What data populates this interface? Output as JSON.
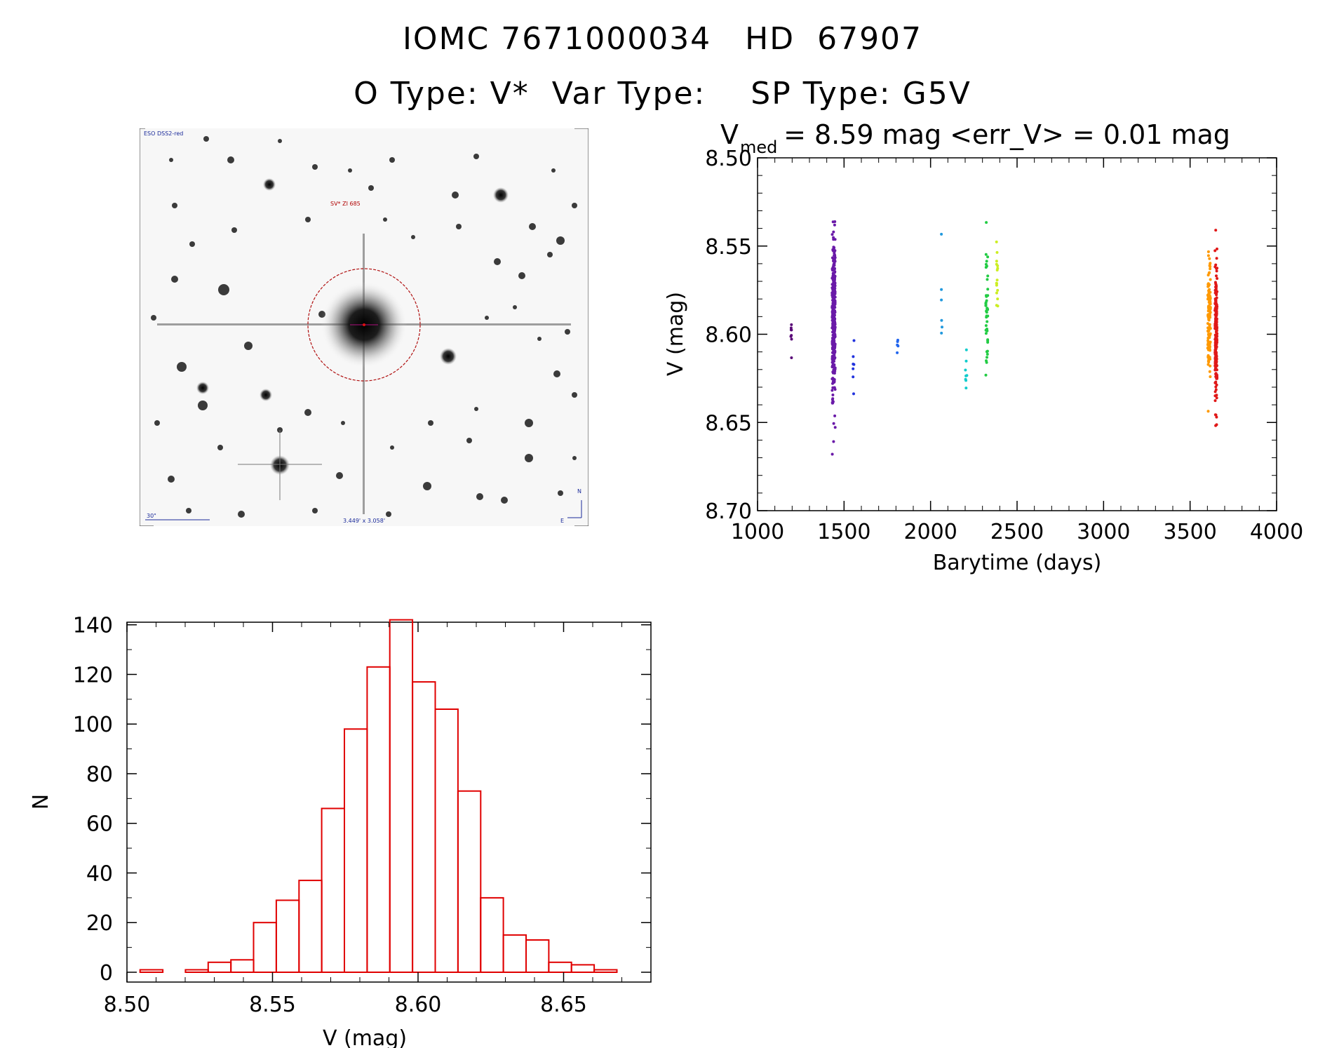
{
  "header": {
    "line1": "IOMC 7671000034   HD  67907",
    "line2": "O Type: V*  Var Type:    SP Type: G5V"
  },
  "finder": {
    "survey_label": "ESO DSS2-red",
    "object_label": "SV* ZI 685",
    "scale_label": "30\"",
    "fov_label": "3.449' x 3.058'",
    "north_label": "N",
    "east_label": "E"
  },
  "chart_data": [
    {
      "type": "scatter",
      "id": "light-curve",
      "title_main": "V",
      "title_sub": "med",
      "title_rest": " = 8.59 mag <err_V> = 0.01 mag",
      "xlabel": "Barytime (days)",
      "ylabel": "V (mag)",
      "xlim": [
        1000,
        4000
      ],
      "ylim": [
        8.7,
        8.5
      ],
      "y_inverted": true,
      "xticks": [
        1000,
        1500,
        2000,
        2500,
        3000,
        3500,
        4000
      ],
      "yticks": [
        "8.50",
        "8.55",
        "8.60",
        "8.65",
        "8.70"
      ],
      "groups": [
        {
          "x_center": 1195,
          "x_spread": 3,
          "y_center": 8.598,
          "y_sd": 0.011,
          "count": 8,
          "color": "#5a0a78"
        },
        {
          "x_center": 1440,
          "x_spread": 9,
          "y_center": 8.592,
          "y_sd": 0.023,
          "count": 330,
          "color": "#6a1aa8"
        },
        {
          "x_center": 1555,
          "x_spread": 3,
          "y_center": 8.622,
          "y_sd": 0.013,
          "count": 7,
          "color": "#2233dd"
        },
        {
          "x_center": 1810,
          "x_spread": 3,
          "y_center": 8.606,
          "y_sd": 0.005,
          "count": 5,
          "color": "#2266ee"
        },
        {
          "x_center": 2065,
          "x_spread": 3,
          "y_center": 8.584,
          "y_sd": 0.012,
          "count": 6,
          "color": "#2299dd"
        },
        {
          "x_center": 2205,
          "x_spread": 5,
          "y_center": 8.624,
          "y_sd": 0.008,
          "count": 8,
          "color": "#11cccc"
        },
        {
          "x_center": 2325,
          "x_spread": 6,
          "y_center": 8.59,
          "y_sd": 0.016,
          "count": 45,
          "color": "#22cc44"
        },
        {
          "x_center": 2385,
          "x_spread": 4,
          "y_center": 8.566,
          "y_sd": 0.01,
          "count": 16,
          "color": "#ccee22"
        },
        {
          "x_center": 3610,
          "x_spread": 8,
          "y_center": 8.588,
          "y_sd": 0.017,
          "count": 130,
          "color": "#ff9900"
        },
        {
          "x_center": 3650,
          "x_spread": 6,
          "y_center": 8.598,
          "y_sd": 0.02,
          "count": 200,
          "color": "#e01818"
        }
      ]
    },
    {
      "type": "bar",
      "id": "histogram",
      "xlabel": "V (mag)",
      "ylabel": "N",
      "xlim": [
        8.5,
        8.68
      ],
      "ylim": [
        0,
        145
      ],
      "xticks": [
        "8.50",
        "8.55",
        "8.60",
        "8.65"
      ],
      "yticks": [
        "0",
        "20",
        "40",
        "60",
        "80",
        "100",
        "120",
        "140"
      ],
      "bin_start": 8.5045,
      "bin_width": 0.0078,
      "values": [
        1,
        0,
        1,
        4,
        5,
        20,
        29,
        37,
        66,
        98,
        123,
        142,
        117,
        106,
        73,
        30,
        15,
        13,
        4,
        3,
        1
      ],
      "color": "#e00000"
    }
  ]
}
